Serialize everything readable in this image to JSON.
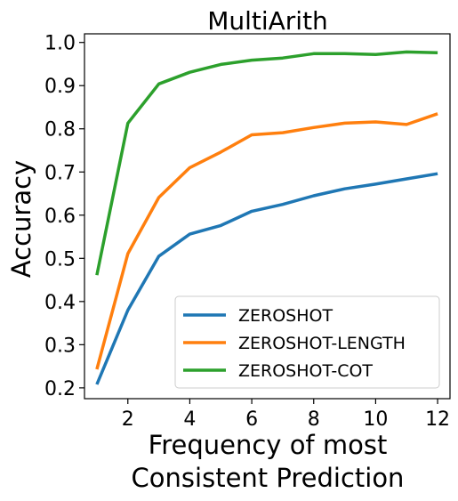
{
  "chart_data": {
    "type": "line",
    "title": "MultiArith",
    "xlabel_lines": [
      "Frequency of most",
      "Consistent Prediction"
    ],
    "ylabel": "Accuracy",
    "xlim": [
      0.6,
      12.4
    ],
    "ylim": [
      0.175,
      1.02
    ],
    "xticks": [
      2,
      4,
      6,
      8,
      10,
      12
    ],
    "yticks": [
      0.2,
      0.3,
      0.4,
      0.5,
      0.6,
      0.7,
      0.8,
      0.9,
      1.0
    ],
    "ytick_labels": [
      "0.2",
      "0.3",
      "0.4",
      "0.5",
      "0.6",
      "0.7",
      "0.8",
      "0.9",
      "1.0"
    ],
    "grid": false,
    "legend_position": "lower-right",
    "x": [
      1,
      2,
      3,
      4,
      5,
      6,
      7,
      8,
      9,
      10,
      11,
      12
    ],
    "series": [
      {
        "name": "ZEROSHOT",
        "color": "#1f77b4",
        "values": [
          0.208,
          0.38,
          0.505,
          0.556,
          0.576,
          0.609,
          0.625,
          0.645,
          0.661,
          0.672,
          0.684,
          0.696
        ]
      },
      {
        "name": "ZEROSHOT-LENGTH",
        "color": "#ff7f0e",
        "values": [
          0.243,
          0.511,
          0.641,
          0.71,
          0.746,
          0.786,
          0.791,
          0.803,
          0.813,
          0.816,
          0.81,
          0.835
        ]
      },
      {
        "name": "ZEROSHOT-COT",
        "color": "#2ca02c",
        "values": [
          0.461,
          0.813,
          0.904,
          0.931,
          0.949,
          0.959,
          0.964,
          0.974,
          0.974,
          0.972,
          0.978,
          0.976
        ]
      }
    ]
  }
}
